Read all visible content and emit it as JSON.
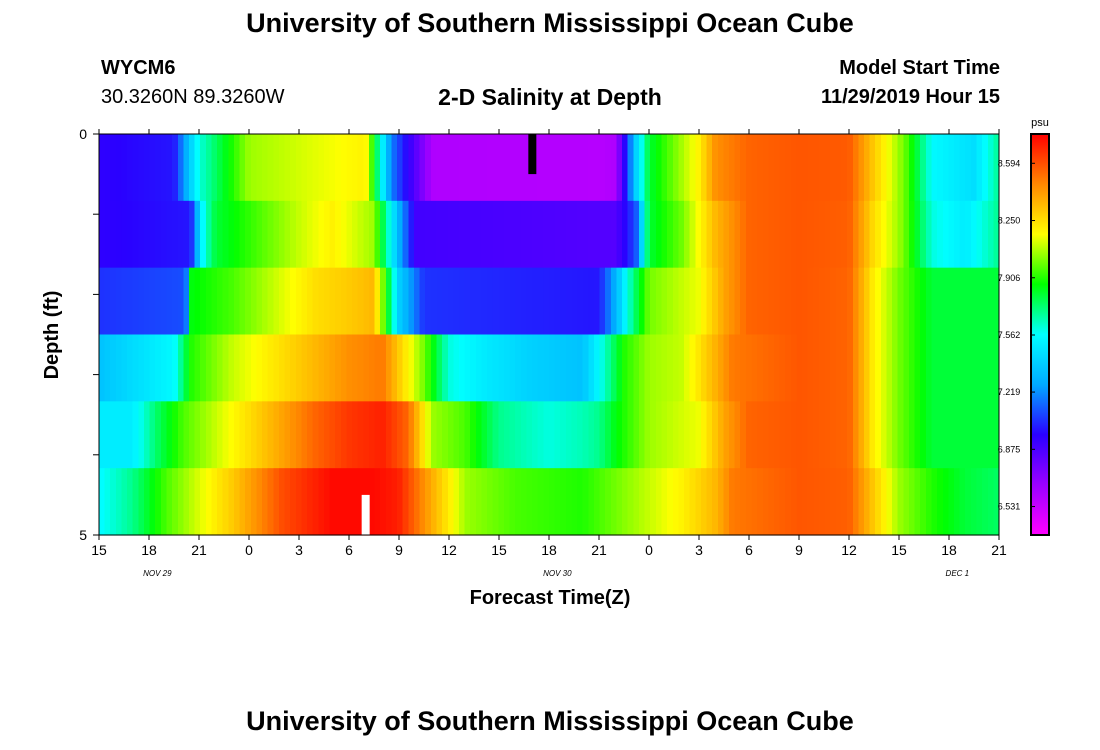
{
  "header": {
    "title": "University of Southern Mississippi Ocean Cube",
    "station": "WYCM6",
    "coords": "30.3260N 89.3260W",
    "subtitle": "2-D Salinity at Depth",
    "model_start_label": "Model Start Time",
    "model_start_value": "11/29/2019 Hour 15"
  },
  "footer": {
    "title": "University of Southern Mississippi Ocean Cube"
  },
  "chart_data": {
    "type": "heatmap",
    "title": "2-D Salinity at Depth",
    "xlabel": "Forecast Time(Z)",
    "ylabel": "Depth (ft)",
    "ylim": [
      0,
      5
    ],
    "y_tick_labels": [
      "0",
      "5"
    ],
    "x_tick_labels": [
      "15",
      "18",
      "21",
      "0",
      "3",
      "6",
      "9",
      "12",
      "15",
      "18",
      "21",
      "0",
      "3",
      "6",
      "9",
      "12",
      "15",
      "18",
      "21"
    ],
    "date_labels": [
      {
        "text": "NOV  29",
        "at_hour": 3.5
      },
      {
        "text": "NOV  30",
        "at_hour": 27.5
      },
      {
        "text": "DEC  1",
        "at_hour": 51.5
      }
    ],
    "x_hours_range": [
      0,
      54
    ],
    "colorbar": {
      "unit": "psu",
      "range": [
        6.36,
        8.77
      ],
      "tick_labels": [
        "6.531",
        "6.875",
        "7.219",
        "7.562",
        "7.906",
        "8.250",
        "8.594"
      ],
      "colors": [
        "#ff00ff",
        "#9b00ff",
        "#2a00ff",
        "#00aaff",
        "#00ffff",
        "#00ff00",
        "#ffff00",
        "#ff8800",
        "#ff0000"
      ]
    },
    "depth_rows": [
      {
        "depth": 0,
        "keyframes": [
          [
            0,
            6.95
          ],
          [
            4.5,
            7.0
          ],
          [
            6,
            7.6
          ],
          [
            9,
            8.05
          ],
          [
            16,
            8.2
          ],
          [
            17.5,
            7.2
          ],
          [
            20,
            6.6
          ],
          [
            30,
            6.58
          ],
          [
            31,
            6.6
          ],
          [
            32.2,
            7.4
          ],
          [
            33,
            7.8
          ],
          [
            36,
            8.2
          ],
          [
            37,
            8.45
          ],
          [
            39,
            8.55
          ],
          [
            42,
            8.58
          ],
          [
            45,
            8.57
          ],
          [
            46.5,
            8.3
          ],
          [
            48,
            8.05
          ],
          [
            48.5,
            7.95
          ],
          [
            50,
            7.55
          ],
          [
            52.5,
            7.45
          ],
          [
            54,
            7.7
          ]
        ]
      },
      {
        "depth": 1,
        "keyframes": [
          [
            0,
            6.95
          ],
          [
            5.5,
            7.0
          ],
          [
            6.3,
            7.6
          ],
          [
            7,
            7.8
          ],
          [
            12,
            8.1
          ],
          [
            14,
            8.2
          ],
          [
            16.5,
            8.05
          ],
          [
            18,
            7.3
          ],
          [
            19,
            6.9
          ],
          [
            31,
            6.85
          ],
          [
            32.2,
            7.1
          ],
          [
            33,
            7.8
          ],
          [
            35,
            8.0
          ],
          [
            37,
            8.35
          ],
          [
            39,
            8.55
          ],
          [
            42,
            8.58
          ],
          [
            45,
            8.56
          ],
          [
            46.5,
            8.25
          ],
          [
            48,
            8.05
          ],
          [
            48.5,
            7.95
          ],
          [
            50,
            7.6
          ],
          [
            52,
            7.5
          ],
          [
            54,
            7.7
          ]
        ]
      },
      {
        "depth": 2,
        "keyframes": [
          [
            0,
            7.05
          ],
          [
            5.2,
            7.1
          ],
          [
            5.5,
            7.85
          ],
          [
            8,
            7.95
          ],
          [
            13,
            8.25
          ],
          [
            15,
            8.3
          ],
          [
            16.5,
            8.35
          ],
          [
            18,
            7.4
          ],
          [
            19.5,
            7.05
          ],
          [
            30,
            7.0
          ],
          [
            31,
            7.3
          ],
          [
            32,
            7.7
          ],
          [
            33,
            8.0
          ],
          [
            36,
            8.15
          ],
          [
            37.5,
            8.4
          ],
          [
            39,
            8.55
          ],
          [
            42,
            8.58
          ],
          [
            45,
            8.55
          ],
          [
            46.5,
            8.2
          ],
          [
            48,
            8.0
          ],
          [
            49,
            7.9
          ],
          [
            50,
            7.8
          ],
          [
            54,
            7.8
          ]
        ]
      },
      {
        "depth": 3,
        "keyframes": [
          [
            0,
            7.35
          ],
          [
            4.5,
            7.55
          ],
          [
            5.5,
            7.9
          ],
          [
            8,
            8.1
          ],
          [
            12,
            8.3
          ],
          [
            15,
            8.45
          ],
          [
            17,
            8.5
          ],
          [
            19.5,
            8.0
          ],
          [
            21,
            7.6
          ],
          [
            23,
            7.5
          ],
          [
            26,
            7.4
          ],
          [
            29,
            7.35
          ],
          [
            30,
            7.55
          ],
          [
            31.5,
            7.9
          ],
          [
            33,
            8.05
          ],
          [
            35,
            8.1
          ],
          [
            36.5,
            8.3
          ],
          [
            38,
            8.5
          ],
          [
            42,
            8.58
          ],
          [
            45,
            8.55
          ],
          [
            46.5,
            8.2
          ],
          [
            48,
            8.0
          ],
          [
            49,
            7.9
          ],
          [
            50,
            7.8
          ],
          [
            54,
            7.8
          ]
        ]
      },
      {
        "depth": 4,
        "keyframes": [
          [
            0,
            7.5
          ],
          [
            2,
            7.5
          ],
          [
            3.5,
            7.75
          ],
          [
            5,
            7.95
          ],
          [
            7,
            8.1
          ],
          [
            11,
            8.4
          ],
          [
            13,
            8.55
          ],
          [
            15,
            8.65
          ],
          [
            17,
            8.7
          ],
          [
            18.5,
            8.55
          ],
          [
            20,
            8.05
          ],
          [
            22,
            7.95
          ],
          [
            24,
            7.7
          ],
          [
            27,
            7.6
          ],
          [
            29,
            7.65
          ],
          [
            30,
            7.7
          ],
          [
            31,
            7.85
          ],
          [
            33,
            8.05
          ],
          [
            36,
            8.15
          ],
          [
            37.5,
            8.4
          ],
          [
            39,
            8.55
          ],
          [
            42,
            8.58
          ],
          [
            45,
            8.55
          ],
          [
            46.5,
            8.2
          ],
          [
            48,
            8.0
          ],
          [
            49,
            7.9
          ],
          [
            50,
            7.8
          ],
          [
            54,
            7.8
          ]
        ]
      },
      {
        "depth": 5,
        "keyframes": [
          [
            0,
            7.55
          ],
          [
            2,
            7.7
          ],
          [
            4,
            7.95
          ],
          [
            8,
            8.3
          ],
          [
            11,
            8.6
          ],
          [
            14,
            8.75
          ],
          [
            16.5,
            8.75
          ],
          [
            18,
            8.7
          ],
          [
            19.5,
            8.45
          ],
          [
            22,
            8.05
          ],
          [
            25,
            7.95
          ],
          [
            29,
            7.9
          ],
          [
            30,
            7.95
          ],
          [
            32,
            8.05
          ],
          [
            35,
            8.2
          ],
          [
            37,
            8.35
          ],
          [
            38,
            8.5
          ],
          [
            42,
            8.58
          ],
          [
            45,
            8.56
          ],
          [
            46.5,
            8.3
          ],
          [
            48,
            8.05
          ],
          [
            50,
            7.9
          ],
          [
            52,
            7.8
          ],
          [
            54,
            7.75
          ]
        ]
      }
    ],
    "markers": [
      {
        "color": "black",
        "hour": 26,
        "depth_from": 0,
        "depth_to": 0.5
      },
      {
        "color": "white",
        "hour": 16,
        "depth_from": 4.5,
        "depth_to": 5
      }
    ]
  }
}
